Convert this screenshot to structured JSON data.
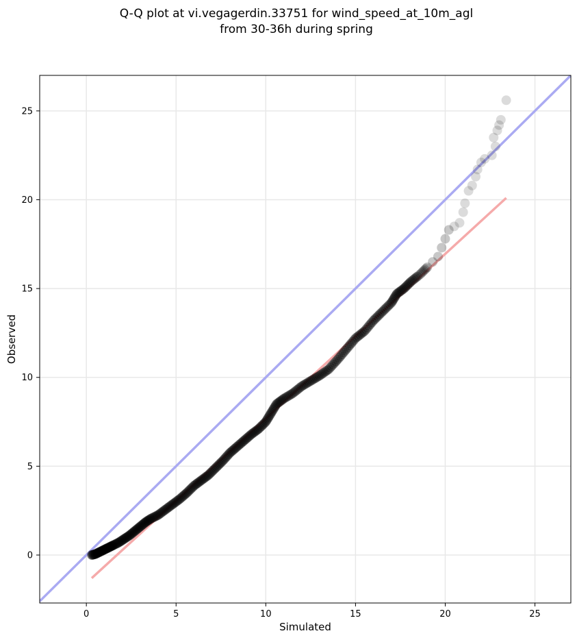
{
  "chart_data": {
    "type": "scatter",
    "title_lines": [
      "Q-Q plot at vi.vegagerdin.33751 for wind_speed_at_10m_agl",
      "from 30-36h during spring"
    ],
    "xlabel": "Simulated",
    "ylabel": "Observed",
    "xlim": [
      -2.6,
      27.0
    ],
    "ylim": [
      -2.7,
      27.0
    ],
    "xticks": [
      0,
      5,
      10,
      15,
      20,
      25
    ],
    "yticks": [
      0,
      5,
      10,
      15,
      20,
      25
    ],
    "grid": true,
    "identity_line": {
      "color": "#aaaaf2",
      "from": [
        -2.6,
        -2.6
      ],
      "to": [
        27.0,
        27.0
      ]
    },
    "fit_line": {
      "color": "#f5aaaa",
      "from": [
        0.3,
        -1.3
      ],
      "to": [
        23.4,
        20.1
      ]
    },
    "point_color": "#000000",
    "quantiles": [
      [
        0.3,
        0.0
      ],
      [
        0.5,
        0.05
      ],
      [
        0.7,
        0.15
      ],
      [
        0.9,
        0.25
      ],
      [
        1.1,
        0.35
      ],
      [
        1.3,
        0.45
      ],
      [
        1.5,
        0.55
      ],
      [
        1.8,
        0.7
      ],
      [
        2.1,
        0.9
      ],
      [
        2.4,
        1.1
      ],
      [
        2.7,
        1.35
      ],
      [
        3.0,
        1.6
      ],
      [
        3.3,
        1.85
      ],
      [
        3.6,
        2.05
      ],
      [
        4.0,
        2.25
      ],
      [
        4.4,
        2.55
      ],
      [
        4.8,
        2.85
      ],
      [
        5.2,
        3.15
      ],
      [
        5.6,
        3.5
      ],
      [
        6.0,
        3.9
      ],
      [
        6.4,
        4.2
      ],
      [
        6.8,
        4.5
      ],
      [
        7.2,
        4.9
      ],
      [
        7.6,
        5.3
      ],
      [
        8.0,
        5.75
      ],
      [
        8.4,
        6.1
      ],
      [
        8.8,
        6.45
      ],
      [
        9.2,
        6.8
      ],
      [
        9.6,
        7.1
      ],
      [
        10.0,
        7.5
      ],
      [
        10.3,
        8.0
      ],
      [
        10.6,
        8.5
      ],
      [
        11.0,
        8.8
      ],
      [
        11.5,
        9.1
      ],
      [
        12.0,
        9.5
      ],
      [
        12.5,
        9.8
      ],
      [
        13.0,
        10.1
      ],
      [
        13.5,
        10.45
      ],
      [
        14.0,
        11.0
      ],
      [
        14.5,
        11.6
      ],
      [
        15.0,
        12.2
      ],
      [
        15.5,
        12.6
      ],
      [
        16.0,
        13.2
      ],
      [
        16.5,
        13.7
      ],
      [
        17.0,
        14.2
      ],
      [
        17.3,
        14.7
      ],
      [
        17.7,
        15.0
      ],
      [
        18.1,
        15.4
      ],
      [
        18.6,
        15.8
      ],
      [
        19.0,
        16.2
      ],
      [
        19.3,
        16.5
      ],
      [
        19.6,
        16.8
      ],
      [
        19.8,
        17.3
      ],
      [
        20.0,
        17.8
      ],
      [
        20.2,
        18.3
      ],
      [
        20.5,
        18.5
      ],
      [
        20.8,
        18.7
      ],
      [
        21.0,
        19.3
      ],
      [
        21.1,
        19.8
      ],
      [
        21.3,
        20.5
      ],
      [
        21.5,
        20.8
      ],
      [
        21.7,
        21.3
      ],
      [
        21.8,
        21.7
      ],
      [
        22.0,
        22.1
      ],
      [
        22.2,
        22.3
      ],
      [
        22.6,
        22.5
      ],
      [
        22.8,
        23.0
      ],
      [
        22.7,
        23.5
      ],
      [
        22.9,
        23.9
      ],
      [
        23.0,
        24.2
      ],
      [
        23.1,
        24.5
      ],
      [
        23.4,
        25.6
      ]
    ]
  }
}
